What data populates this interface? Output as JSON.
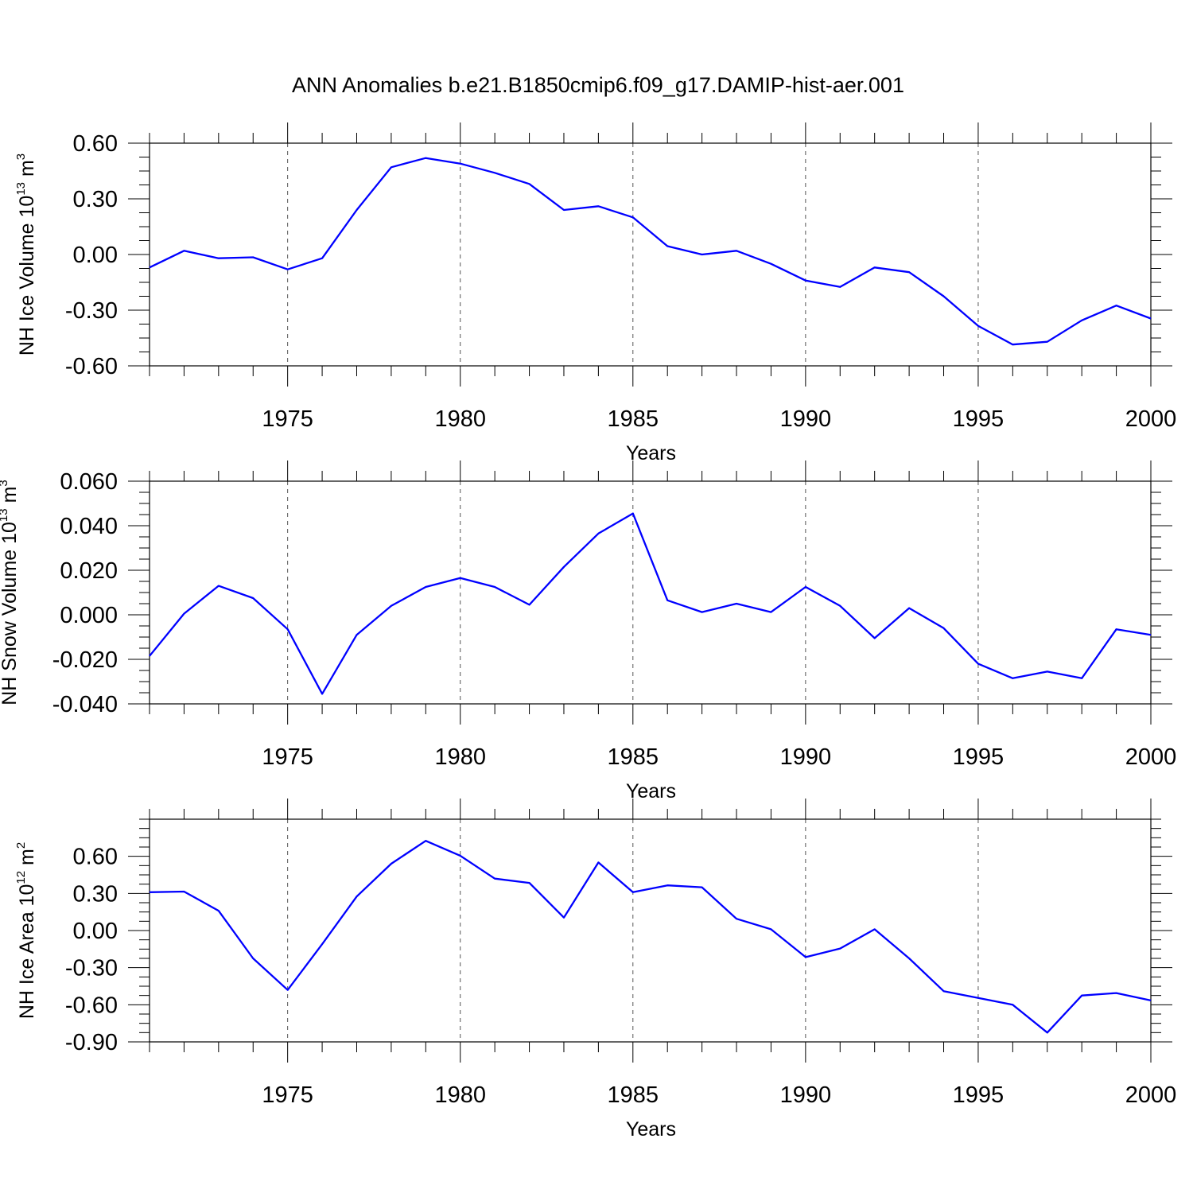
{
  "title": "ANN Anomalies b.e21.B1850cmip6.f09_g17.DAMIP-hist-aer.001",
  "chart_data": [
    {
      "type": "line",
      "ylabel": {
        "prefix": "NH Ice Volume 10",
        "exp": "13",
        "unit": " m",
        "unit_exp": "3"
      },
      "xlabel": "Years",
      "xlim": [
        1971,
        2000
      ],
      "ylim": [
        -0.6,
        0.6
      ],
      "yticks": [
        -0.6,
        -0.3,
        0.0,
        0.3,
        0.6
      ],
      "ytick_labels": [
        "-0.60",
        "-0.30",
        "0.00",
        "0.30",
        "0.60"
      ],
      "xticks": [
        1975,
        1980,
        1985,
        1990,
        1995,
        2000
      ],
      "xtick_labels": [
        "1975",
        "1980",
        "1985",
        "1990",
        "1995",
        "2000"
      ],
      "grid": "vertical dashed at labeled years",
      "color": "#0000ff",
      "series": [
        {
          "x": [
            1971,
            1972,
            1973,
            1974,
            1975,
            1976,
            1977,
            1978,
            1979,
            1980,
            1981,
            1982,
            1983,
            1984,
            1985,
            1986,
            1987,
            1988,
            1989,
            1990,
            1991,
            1992,
            1993,
            1994,
            1995,
            1996,
            1997,
            1998,
            1999,
            2000
          ],
          "values": [
            -0.07,
            0.02,
            -0.02,
            -0.015,
            -0.08,
            -0.02,
            0.24,
            0.47,
            0.52,
            0.49,
            0.44,
            0.38,
            0.24,
            0.26,
            0.2,
            0.045,
            0.0,
            0.02,
            -0.05,
            -0.14,
            -0.175,
            -0.07,
            -0.095,
            -0.225,
            -0.385,
            -0.485,
            -0.47,
            -0.355,
            -0.275,
            -0.345
          ]
        }
      ]
    },
    {
      "type": "line",
      "ylabel": {
        "prefix": "NH Snow Volume 10",
        "exp": "13",
        "unit": " m",
        "unit_exp": "3"
      },
      "xlabel": "Years",
      "xlim": [
        1971,
        2000
      ],
      "ylim": [
        -0.04,
        0.06
      ],
      "yticks": [
        -0.04,
        -0.02,
        0.0,
        0.02,
        0.04,
        0.06
      ],
      "ytick_labels": [
        "-0.040",
        "-0.020",
        "0.000",
        "0.020",
        "0.040",
        "0.060"
      ],
      "xticks": [
        1975,
        1980,
        1985,
        1990,
        1995,
        2000
      ],
      "xtick_labels": [
        "1975",
        "1980",
        "1985",
        "1990",
        "1995",
        "2000"
      ],
      "grid": "vertical dashed at labeled years",
      "color": "#0000ff",
      "series": [
        {
          "x": [
            1971,
            1972,
            1973,
            1974,
            1975,
            1976,
            1977,
            1978,
            1979,
            1980,
            1981,
            1982,
            1983,
            1984,
            1985,
            1986,
            1987,
            1988,
            1989,
            1990,
            1991,
            1992,
            1993,
            1994,
            1995,
            1996,
            1997,
            1998,
            1999,
            2000
          ],
          "values": [
            -0.0185,
            0.0005,
            0.013,
            0.0075,
            -0.0065,
            -0.0355,
            -0.009,
            0.004,
            0.0125,
            0.0165,
            0.0125,
            0.0045,
            0.0215,
            0.0365,
            0.0455,
            0.0065,
            0.0012,
            0.005,
            0.0012,
            0.0125,
            0.004,
            -0.0105,
            0.003,
            -0.006,
            -0.022,
            -0.0285,
            -0.0255,
            -0.0285,
            -0.0065,
            -0.009
          ]
        }
      ]
    },
    {
      "type": "line",
      "ylabel": {
        "prefix": "NH Ice Area 10",
        "exp": "12",
        "unit": " m",
        "unit_exp": "2"
      },
      "xlabel": "Years",
      "xlim": [
        1971,
        2000
      ],
      "ylim": [
        -0.9,
        0.9
      ],
      "yticks": [
        -0.9,
        -0.6,
        -0.3,
        0.0,
        0.3,
        0.6
      ],
      "ytick_labels": [
        "-0.90",
        "-0.60",
        "-0.30",
        "0.00",
        "0.30",
        "0.60"
      ],
      "xticks": [
        1975,
        1980,
        1985,
        1990,
        1995,
        2000
      ],
      "xtick_labels": [
        "1975",
        "1980",
        "1985",
        "1990",
        "1995",
        "2000"
      ],
      "grid": "vertical dashed at labeled years",
      "color": "#0000ff",
      "series": [
        {
          "x": [
            1971,
            1972,
            1973,
            1974,
            1975,
            1976,
            1977,
            1978,
            1979,
            1980,
            1981,
            1982,
            1983,
            1984,
            1985,
            1986,
            1987,
            1988,
            1989,
            1990,
            1991,
            1992,
            1993,
            1994,
            1995,
            1996,
            1997,
            1998,
            1999,
            2000
          ],
          "values": [
            0.31,
            0.315,
            0.16,
            -0.225,
            -0.48,
            -0.11,
            0.275,
            0.54,
            0.725,
            0.605,
            0.42,
            0.385,
            0.105,
            0.55,
            0.31,
            0.365,
            0.35,
            0.095,
            0.01,
            -0.215,
            -0.145,
            0.01,
            -0.225,
            -0.49,
            -0.545,
            -0.6,
            -0.825,
            -0.525,
            -0.505,
            -0.565
          ]
        }
      ]
    }
  ]
}
